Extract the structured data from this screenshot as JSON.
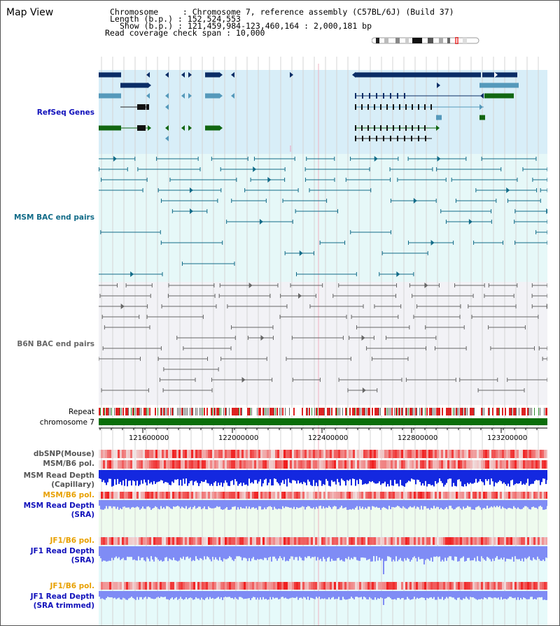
{
  "view": {
    "title": "Map View",
    "info": {
      "chromosome": "Chromosome     : Chromosome 7, reference assembly (C57BL/6J) (Build 37)",
      "length": "Length (b.p.) : 152,524,553",
      "show": "Show (b.p.) : 121,459,984-123,460,164 : 2,000,181 bp",
      "coverage": "Read coverage check span : 10,000"
    }
  },
  "tracks": {
    "refseq": "RefSeq Genes",
    "msm_bac": "MSM BAC end pairs",
    "b6n_bac": "B6N BAC end pairs",
    "repeat": "Repeat",
    "chromosome": "chromosome 7",
    "dbsnp": "dbSNP(Mouse)",
    "msm_b6_pol1": "MSM/B6 pol.",
    "msm_depth_cap_1": "MSM Read Depth",
    "msm_depth_cap_2": "(Capillary)",
    "msm_b6_pol2": "MSM/B6 pol.",
    "msm_depth_sra_1": "MSM Read Depth",
    "msm_depth_sra_2": "(SRA)",
    "jf1_b6_pol1": "JF1/B6 pol.",
    "jf1_depth_sra_1": "JF1 Read Depth",
    "jf1_depth_sra_2": "(SRA)",
    "jf1_b6_pol2": "JF1/B6 pol.",
    "jf1_depth_trim_1": "JF1 Read Depth",
    "jf1_depth_trim_2": "(SRA trimmed)"
  },
  "axis": {
    "ticks": [
      "121600000",
      "122000000",
      "122400000",
      "122800000",
      "123200000"
    ]
  },
  "colors": {
    "refseq_bg": "#d8eef8",
    "msm_bg": "#e6f8f8",
    "b6n_bg": "#f2f2f6",
    "gene_dark": "#0b2d66",
    "gene_mid": "#5599bb",
    "gene_green": "#116611",
    "msm_line": "#116b88",
    "b6n_line": "#666666",
    "chrom_green": "#0a6e0a",
    "depth_blue": "#1428e0",
    "depth_light": "#7f8cf5",
    "label_orange": "#e8a000",
    "label_blue": "#1010bb"
  }
}
